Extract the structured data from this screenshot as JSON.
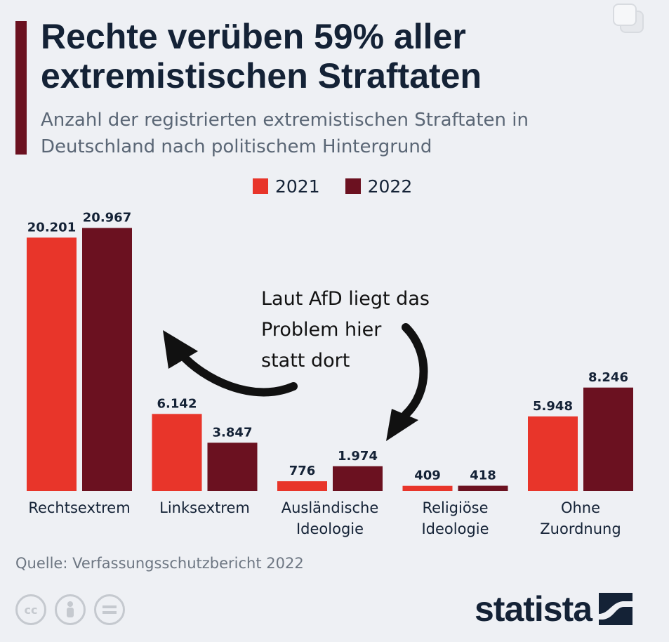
{
  "title": "Rechte verüben 59% aller extremistischen Straftaten",
  "subtitle": "Anzahl der registrierten extremistischen Straftaten in Deutschland nach politischem Hintergrund",
  "legend": {
    "series_2021": "2021",
    "series_2022": "2022"
  },
  "colors": {
    "series_2021": "#e8352a",
    "series_2022": "#6b1120",
    "title_bar": "#6b1120"
  },
  "annotation": "Laut AfD liegt das Problem hier statt dort",
  "source": "Quelle: Verfassungsschutzbericht 2022",
  "brand": "statista",
  "chart_data": {
    "type": "bar",
    "categories": [
      [
        "Rechtsextrem"
      ],
      [
        "Linksextrem"
      ],
      [
        "Ausländische",
        "Ideologie"
      ],
      [
        "Religiöse",
        "Ideologie"
      ],
      [
        "Ohne",
        "Zuordnung"
      ]
    ],
    "series": [
      {
        "name": "2021",
        "values": [
          20201,
          6142,
          776,
          409,
          5948
        ],
        "labels": [
          "20.201",
          "6.142",
          "776",
          "409",
          "5.948"
        ]
      },
      {
        "name": "2022",
        "values": [
          20967,
          3847,
          1974,
          418,
          8246
        ],
        "labels": [
          "20.967",
          "3.847",
          "1.974",
          "418",
          "8.246"
        ]
      }
    ],
    "ylim": [
      0,
      21000
    ],
    "grid": false,
    "legend_position": "top"
  }
}
